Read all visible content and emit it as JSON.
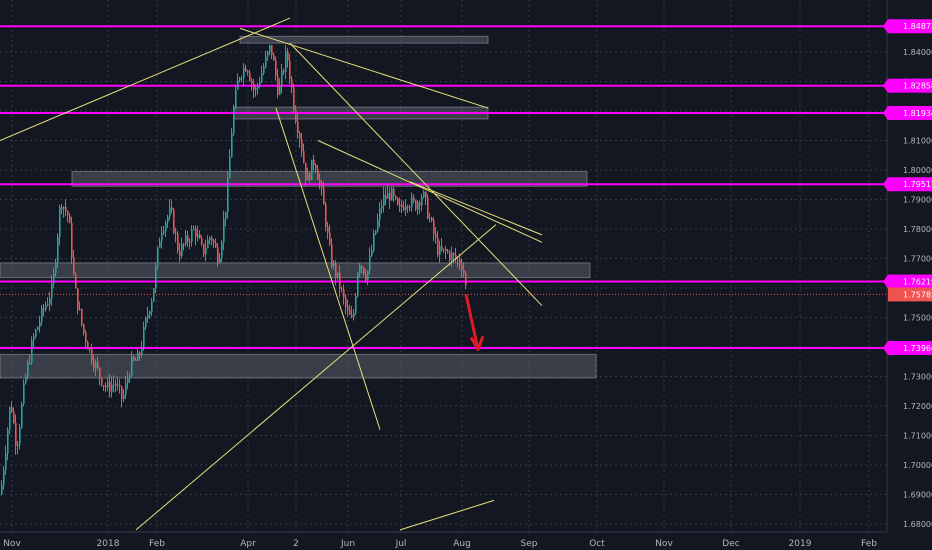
{
  "chart_data": {
    "type": "candlestick",
    "title": "",
    "xlabel": "",
    "ylabel": "",
    "ylim": [
      1.6765,
      1.8515
    ],
    "grid": true,
    "x_ticks": [
      "Nov",
      "2018",
      "Feb",
      "Apr",
      "2",
      "Jun",
      "Jul",
      "Aug",
      "Sep",
      "Oct",
      "Nov",
      "Dec",
      "2019",
      "Feb"
    ],
    "y_ticks": [
      "1.84000",
      "1.83000",
      "1.82000",
      "1.81000",
      "1.80000",
      "1.79000",
      "1.78000",
      "1.77000",
      "1.76000",
      "1.75000",
      "1.74000",
      "1.73000",
      "1.72000",
      "1.71000",
      "1.70000",
      "1.69000",
      "1.68000"
    ],
    "price_path": [
      [
        0,
        1.69
      ],
      [
        10,
        1.722
      ],
      [
        16,
        1.706
      ],
      [
        24,
        1.728
      ],
      [
        32,
        1.742
      ],
      [
        42,
        1.752
      ],
      [
        52,
        1.76
      ],
      [
        60,
        1.79
      ],
      [
        68,
        1.784
      ],
      [
        74,
        1.76
      ],
      [
        82,
        1.746
      ],
      [
        90,
        1.738
      ],
      [
        98,
        1.731
      ],
      [
        106,
        1.726
      ],
      [
        114,
        1.728
      ],
      [
        122,
        1.722
      ],
      [
        130,
        1.734
      ],
      [
        138,
        1.736
      ],
      [
        146,
        1.75
      ],
      [
        152,
        1.758
      ],
      [
        160,
        1.78
      ],
      [
        170,
        1.786
      ],
      [
        178,
        1.772
      ],
      [
        186,
        1.776
      ],
      [
        194,
        1.78
      ],
      [
        202,
        1.772
      ],
      [
        210,
        1.778
      ],
      [
        218,
        1.77
      ],
      [
        226,
        1.79
      ],
      [
        232,
        1.818
      ],
      [
        238,
        1.832
      ],
      [
        246,
        1.836
      ],
      [
        254,
        1.826
      ],
      [
        262,
        1.834
      ],
      [
        270,
        1.842
      ],
      [
        278,
        1.826
      ],
      [
        286,
        1.84
      ],
      [
        294,
        1.82
      ],
      [
        300,
        1.81
      ],
      [
        306,
        1.796
      ],
      [
        314,
        1.804
      ],
      [
        322,
        1.79
      ],
      [
        330,
        1.77
      ],
      [
        338,
        1.762
      ],
      [
        346,
        1.752
      ],
      [
        352,
        1.748
      ],
      [
        358,
        1.77
      ],
      [
        366,
        1.764
      ],
      [
        374,
        1.778
      ],
      [
        382,
        1.79
      ],
      [
        390,
        1.792
      ],
      [
        398,
        1.786
      ],
      [
        406,
        1.79
      ],
      [
        414,
        1.788
      ],
      [
        422,
        1.792
      ],
      [
        430,
        1.782
      ],
      [
        438,
        1.772
      ],
      [
        446,
        1.772
      ],
      [
        454,
        1.77
      ],
      [
        462,
        1.768
      ],
      [
        466,
        1.7578
      ]
    ],
    "horizontal_levels": [
      "1.84873",
      "1.82858",
      "1.81934",
      "1.79517",
      "1.76219",
      "1.73966"
    ],
    "current_price": "1.75782",
    "zones": [
      {
        "x0": 240,
        "x1": 488,
        "y_top": 1.8453,
        "y_bot": 1.843
      },
      {
        "x0": 234,
        "x1": 488,
        "y_top": 1.8213,
        "y_bot": 1.8173
      },
      {
        "x0": 72,
        "x1": 587,
        "y_top": 1.7995,
        "y_bot": 1.7945
      },
      {
        "x0": 0,
        "x1": 590,
        "y_top": 1.7685,
        "y_bot": 1.7635
      },
      {
        "x0": 0,
        "x1": 596,
        "y_top": 1.7375,
        "y_bot": 1.7295
      }
    ],
    "trendlines": [
      {
        "x0": 0,
        "y0": 1.81,
        "x1": 290,
        "y1": 1.8515
      },
      {
        "x0": 240,
        "y0": 1.848,
        "x1": 488,
        "y1": 1.821
      },
      {
        "x0": 290,
        "y0": 1.843,
        "x1": 542,
        "y1": 1.754
      },
      {
        "x0": 276,
        "y0": 1.821,
        "x1": 380,
        "y1": 1.712
      },
      {
        "x0": 318,
        "y0": 1.81,
        "x1": 542,
        "y1": 1.7755
      },
      {
        "x0": 410,
        "y0": 1.796,
        "x1": 542,
        "y1": 1.778
      },
      {
        "x0": 136,
        "y0": 1.678,
        "x1": 496,
        "y1": 1.7815
      },
      {
        "x0": 400,
        "y0": 1.678,
        "x1": 494,
        "y1": 1.688
      }
    ],
    "arrow": {
      "x0": 466,
      "y0": 1.7578,
      "x1": 478,
      "y1": 1.7392
    },
    "colors": {
      "background": "#131722",
      "up": "#26a69a",
      "down": "#ef5350",
      "level": "#ff00ff",
      "trendline": "#e8e17a",
      "zone": "#5b5f6a",
      "arrow": "#e01b24",
      "grid": "#363a45",
      "axis_text": "#b2b5be"
    }
  }
}
